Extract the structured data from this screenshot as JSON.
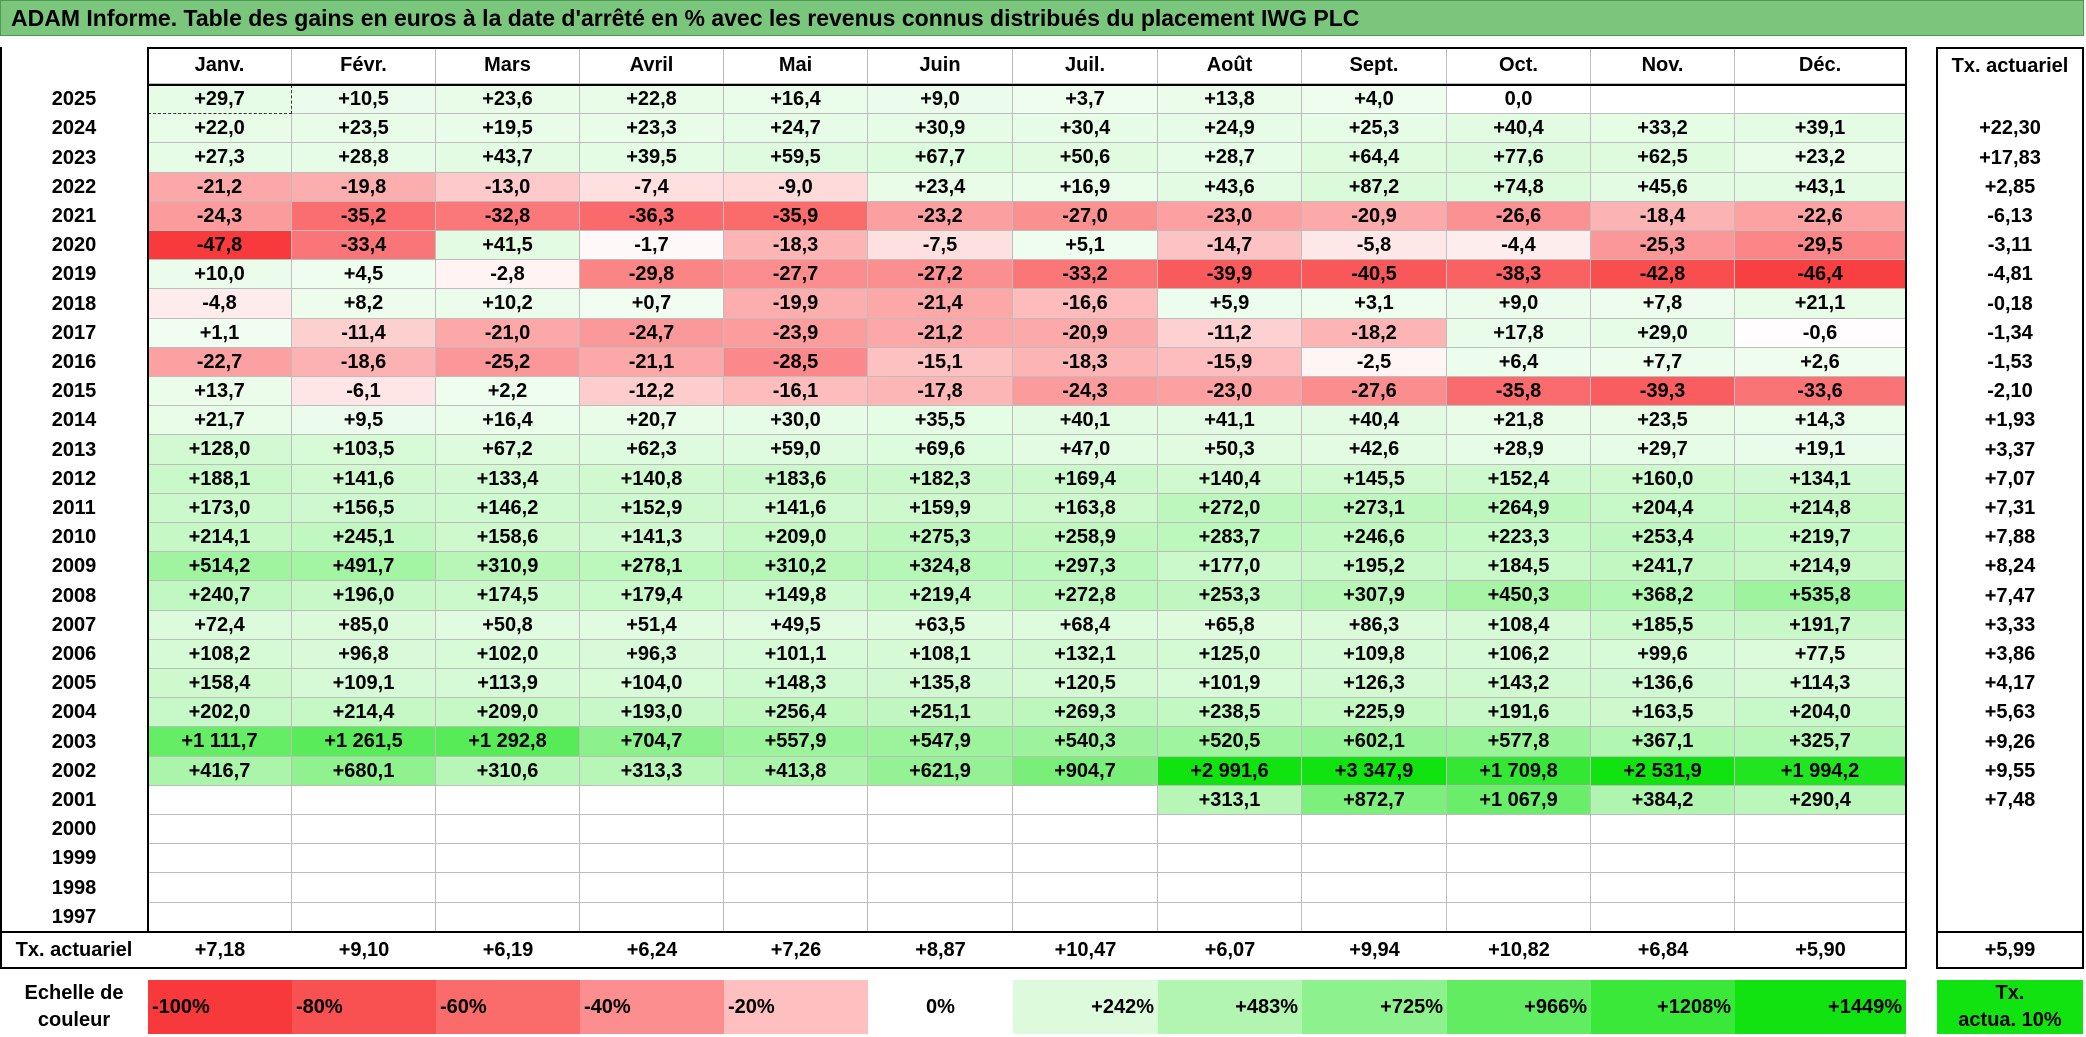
{
  "title": "ADAM Informe. Table des gains en euros à la date d'arrêté en % avec les revenus connus distribués du placement IWG PLC",
  "months": [
    "Janv.",
    "Févr.",
    "Mars",
    "Avril",
    "Mai",
    "Juin",
    "Juil.",
    "Août",
    "Sept.",
    "Oct.",
    "Nov.",
    "Déc."
  ],
  "annual_header": "Tx. actuariel",
  "rows": [
    {
      "year": "2025",
      "values": [
        "+29,7",
        "+10,5",
        "+23,6",
        "+22,8",
        "+16,4",
        "+9,0",
        "+3,7",
        "+13,8",
        "+4,0",
        "0,0",
        "",
        ""
      ],
      "annual": ""
    },
    {
      "year": "2024",
      "values": [
        "+22,0",
        "+23,5",
        "+19,5",
        "+23,3",
        "+24,7",
        "+30,9",
        "+30,4",
        "+24,9",
        "+25,3",
        "+40,4",
        "+33,2",
        "+39,1"
      ],
      "annual": "+22,30"
    },
    {
      "year": "2023",
      "values": [
        "+27,3",
        "+28,8",
        "+43,7",
        "+39,5",
        "+59,5",
        "+67,7",
        "+50,6",
        "+28,7",
        "+64,4",
        "+77,6",
        "+62,5",
        "+23,2"
      ],
      "annual": "+17,83"
    },
    {
      "year": "2022",
      "values": [
        "-21,2",
        "-19,8",
        "-13,0",
        "-7,4",
        "-9,0",
        "+23,4",
        "+16,9",
        "+43,6",
        "+87,2",
        "+74,8",
        "+45,6",
        "+43,1"
      ],
      "annual": "+2,85"
    },
    {
      "year": "2021",
      "values": [
        "-24,3",
        "-35,2",
        "-32,8",
        "-36,3",
        "-35,9",
        "-23,2",
        "-27,0",
        "-23,0",
        "-20,9",
        "-26,6",
        "-18,4",
        "-22,6"
      ],
      "annual": "-6,13"
    },
    {
      "year": "2020",
      "values": [
        "-47,8",
        "-33,4",
        "+41,5",
        "-1,7",
        "-18,3",
        "-7,5",
        "+5,1",
        "-14,7",
        "-5,8",
        "-4,4",
        "-25,3",
        "-29,5"
      ],
      "annual": "-3,11"
    },
    {
      "year": "2019",
      "values": [
        "+10,0",
        "+4,5",
        "-2,8",
        "-29,8",
        "-27,7",
        "-27,2",
        "-33,2",
        "-39,9",
        "-40,5",
        "-38,3",
        "-42,8",
        "-46,4"
      ],
      "annual": "-4,81"
    },
    {
      "year": "2018",
      "values": [
        "-4,8",
        "+8,2",
        "+10,2",
        "+0,7",
        "-19,9",
        "-21,4",
        "-16,6",
        "+5,9",
        "+3,1",
        "+9,0",
        "+7,8",
        "+21,1"
      ],
      "annual": "-0,18"
    },
    {
      "year": "2017",
      "values": [
        "+1,1",
        "-11,4",
        "-21,0",
        "-24,7",
        "-23,9",
        "-21,2",
        "-20,9",
        "-11,2",
        "-18,2",
        "+17,8",
        "+29,0",
        "-0,6"
      ],
      "annual": "-1,34"
    },
    {
      "year": "2016",
      "values": [
        "-22,7",
        "-18,6",
        "-25,2",
        "-21,1",
        "-28,5",
        "-15,1",
        "-18,3",
        "-15,9",
        "-2,5",
        "+6,4",
        "+7,7",
        "+2,6"
      ],
      "annual": "-1,53"
    },
    {
      "year": "2015",
      "values": [
        "+13,7",
        "-6,1",
        "+2,2",
        "-12,2",
        "-16,1",
        "-17,8",
        "-24,3",
        "-23,0",
        "-27,6",
        "-35,8",
        "-39,3",
        "-33,6"
      ],
      "annual": "-2,10"
    },
    {
      "year": "2014",
      "values": [
        "+21,7",
        "+9,5",
        "+16,4",
        "+20,7",
        "+30,0",
        "+35,5",
        "+40,1",
        "+41,1",
        "+40,4",
        "+21,8",
        "+23,5",
        "+14,3"
      ],
      "annual": "+1,93"
    },
    {
      "year": "2013",
      "values": [
        "+128,0",
        "+103,5",
        "+67,2",
        "+62,3",
        "+59,0",
        "+69,6",
        "+47,0",
        "+50,3",
        "+42,6",
        "+28,9",
        "+29,7",
        "+19,1"
      ],
      "annual": "+3,37"
    },
    {
      "year": "2012",
      "values": [
        "+188,1",
        "+141,6",
        "+133,4",
        "+140,8",
        "+183,6",
        "+182,3",
        "+169,4",
        "+140,4",
        "+145,5",
        "+152,4",
        "+160,0",
        "+134,1"
      ],
      "annual": "+7,07"
    },
    {
      "year": "2011",
      "values": [
        "+173,0",
        "+156,5",
        "+146,2",
        "+152,9",
        "+141,6",
        "+159,9",
        "+163,8",
        "+272,0",
        "+273,1",
        "+264,9",
        "+204,4",
        "+214,8"
      ],
      "annual": "+7,31"
    },
    {
      "year": "2010",
      "values": [
        "+214,1",
        "+245,1",
        "+158,6",
        "+141,3",
        "+209,0",
        "+275,3",
        "+258,9",
        "+283,7",
        "+246,6",
        "+223,3",
        "+253,4",
        "+219,7"
      ],
      "annual": "+7,88"
    },
    {
      "year": "2009",
      "values": [
        "+514,2",
        "+491,7",
        "+310,9",
        "+278,1",
        "+310,2",
        "+324,8",
        "+297,3",
        "+177,0",
        "+195,2",
        "+184,5",
        "+241,7",
        "+214,9"
      ],
      "annual": "+8,24"
    },
    {
      "year": "2008",
      "values": [
        "+240,7",
        "+196,0",
        "+174,5",
        "+179,4",
        "+149,8",
        "+219,4",
        "+272,8",
        "+253,3",
        "+307,9",
        "+450,3",
        "+368,2",
        "+535,8"
      ],
      "annual": "+7,47"
    },
    {
      "year": "2007",
      "values": [
        "+72,4",
        "+85,0",
        "+50,8",
        "+51,4",
        "+49,5",
        "+63,5",
        "+68,4",
        "+65,8",
        "+86,3",
        "+108,4",
        "+185,5",
        "+191,7"
      ],
      "annual": "+3,33"
    },
    {
      "year": "2006",
      "values": [
        "+108,2",
        "+96,8",
        "+102,0",
        "+96,3",
        "+101,1",
        "+108,1",
        "+132,1",
        "+125,0",
        "+109,8",
        "+106,2",
        "+99,6",
        "+77,5"
      ],
      "annual": "+3,86"
    },
    {
      "year": "2005",
      "values": [
        "+158,4",
        "+109,1",
        "+113,9",
        "+104,0",
        "+148,3",
        "+135,8",
        "+120,5",
        "+101,9",
        "+126,3",
        "+143,2",
        "+136,6",
        "+114,3"
      ],
      "annual": "+4,17"
    },
    {
      "year": "2004",
      "values": [
        "+202,0",
        "+214,4",
        "+209,0",
        "+193,0",
        "+256,4",
        "+251,1",
        "+269,3",
        "+238,5",
        "+225,9",
        "+191,6",
        "+163,5",
        "+204,0"
      ],
      "annual": "+5,63"
    },
    {
      "year": "2003",
      "values": [
        "+1 111,7",
        "+1 261,5",
        "+1 292,8",
        "+704,7",
        "+557,9",
        "+547,9",
        "+540,3",
        "+520,5",
        "+602,1",
        "+577,8",
        "+367,1",
        "+325,7"
      ],
      "annual": "+9,26"
    },
    {
      "year": "2002",
      "values": [
        "+416,7",
        "+680,1",
        "+310,6",
        "+313,3",
        "+413,8",
        "+621,9",
        "+904,7",
        "+2 991,6",
        "+3 347,9",
        "+1 709,8",
        "+2 531,9",
        "+1 994,2"
      ],
      "annual": "+9,55"
    },
    {
      "year": "2001",
      "values": [
        "",
        "",
        "",
        "",
        "",
        "",
        "",
        "+313,1",
        "+872,7",
        "+1 067,9",
        "+384,2",
        "+290,4"
      ],
      "annual": "+7,48"
    },
    {
      "year": "2000",
      "values": [
        "",
        "",
        "",
        "",
        "",
        "",
        "",
        "",
        "",
        "",
        "",
        ""
      ],
      "annual": ""
    },
    {
      "year": "1999",
      "values": [
        "",
        "",
        "",
        "",
        "",
        "",
        "",
        "",
        "",
        "",
        "",
        ""
      ],
      "annual": ""
    },
    {
      "year": "1998",
      "values": [
        "",
        "",
        "",
        "",
        "",
        "",
        "",
        "",
        "",
        "",
        "",
        ""
      ],
      "annual": ""
    },
    {
      "year": "1997",
      "values": [
        "",
        "",
        "",
        "",
        "",
        "",
        "",
        "",
        "",
        "",
        "",
        ""
      ],
      "annual": ""
    }
  ],
  "footer": {
    "label": "Tx. actuariel",
    "values": [
      "+7,18",
      "+9,10",
      "+6,19",
      "+6,24",
      "+7,26",
      "+8,87",
      "+10,47",
      "+6,07",
      "+9,94",
      "+10,82",
      "+6,84",
      "+5,90"
    ],
    "annual": "+5,99"
  },
  "scale": {
    "label_line1": "Echelle de",
    "label_line2": "couleur",
    "steps": [
      {
        "text": "-100%",
        "color": "#f8393b",
        "align": "left"
      },
      {
        "text": "-80%",
        "color": "#f95051",
        "align": "left"
      },
      {
        "text": "-60%",
        "color": "#fa6b6c",
        "align": "left"
      },
      {
        "text": "-40%",
        "color": "#fc8e8f",
        "align": "left"
      },
      {
        "text": "-20%",
        "color": "#fdbfbf",
        "align": "left"
      },
      {
        "text": "0%",
        "color": "#ffffff",
        "align": "center"
      },
      {
        "text": "+242%",
        "color": "#ddfadd",
        "align": "right"
      },
      {
        "text": "+483%",
        "color": "#b1f5b1",
        "align": "right"
      },
      {
        "text": "+725%",
        "color": "#8df18d",
        "align": "right"
      },
      {
        "text": "+966%",
        "color": "#62ec62",
        "align": "right"
      },
      {
        "text": "+1208%",
        "color": "#39e839",
        "align": "right"
      },
      {
        "text": "+1449%",
        "color": "#11e311",
        "align": "right"
      }
    ],
    "annual_line1": "Tx.",
    "annual_line2": "actua. 10%",
    "annual_color": "#11e311"
  },
  "colors": {
    "title_bg": "#7bc67d",
    "negative_max": "#f8393b",
    "positive_max": "#11e311"
  }
}
